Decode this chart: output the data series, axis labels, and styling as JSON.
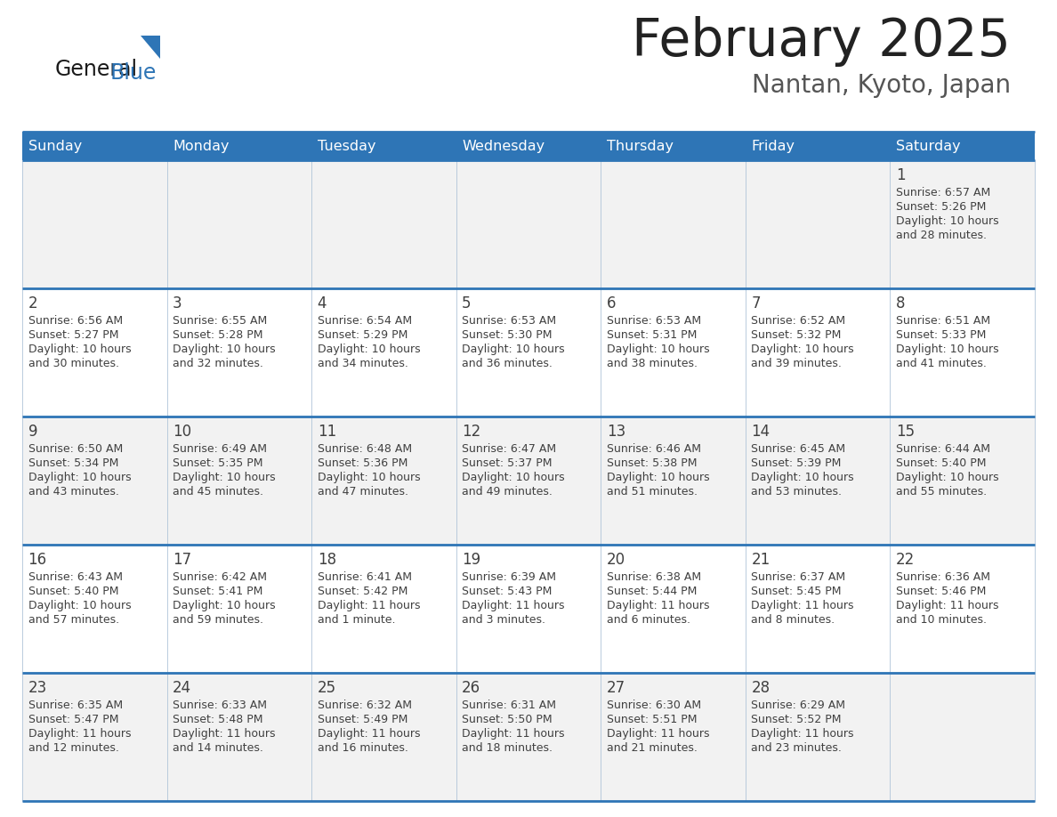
{
  "title": "February 2025",
  "subtitle": "Nantan, Kyoto, Japan",
  "header_bg": "#2E75B6",
  "header_text": "#FFFFFF",
  "cell_bg_light": "#F2F2F2",
  "cell_bg_white": "#FFFFFF",
  "cell_text": "#404040",
  "day_number_color": "#404040",
  "border_color": "#2E75B6",
  "grid_line_color": "#B0C4D8",
  "days_of_week": [
    "Sunday",
    "Monday",
    "Tuesday",
    "Wednesday",
    "Thursday",
    "Friday",
    "Saturday"
  ],
  "weeks": [
    [
      null,
      null,
      null,
      null,
      null,
      null,
      {
        "day": 1,
        "sunrise": "6:57 AM",
        "sunset": "5:26 PM",
        "daylight": "10 hours and 28 minutes."
      }
    ],
    [
      {
        "day": 2,
        "sunrise": "6:56 AM",
        "sunset": "5:27 PM",
        "daylight": "10 hours and 30 minutes."
      },
      {
        "day": 3,
        "sunrise": "6:55 AM",
        "sunset": "5:28 PM",
        "daylight": "10 hours and 32 minutes."
      },
      {
        "day": 4,
        "sunrise": "6:54 AM",
        "sunset": "5:29 PM",
        "daylight": "10 hours and 34 minutes."
      },
      {
        "day": 5,
        "sunrise": "6:53 AM",
        "sunset": "5:30 PM",
        "daylight": "10 hours and 36 minutes."
      },
      {
        "day": 6,
        "sunrise": "6:53 AM",
        "sunset": "5:31 PM",
        "daylight": "10 hours and 38 minutes."
      },
      {
        "day": 7,
        "sunrise": "6:52 AM",
        "sunset": "5:32 PM",
        "daylight": "10 hours and 39 minutes."
      },
      {
        "day": 8,
        "sunrise": "6:51 AM",
        "sunset": "5:33 PM",
        "daylight": "10 hours and 41 minutes."
      }
    ],
    [
      {
        "day": 9,
        "sunrise": "6:50 AM",
        "sunset": "5:34 PM",
        "daylight": "10 hours and 43 minutes."
      },
      {
        "day": 10,
        "sunrise": "6:49 AM",
        "sunset": "5:35 PM",
        "daylight": "10 hours and 45 minutes."
      },
      {
        "day": 11,
        "sunrise": "6:48 AM",
        "sunset": "5:36 PM",
        "daylight": "10 hours and 47 minutes."
      },
      {
        "day": 12,
        "sunrise": "6:47 AM",
        "sunset": "5:37 PM",
        "daylight": "10 hours and 49 minutes."
      },
      {
        "day": 13,
        "sunrise": "6:46 AM",
        "sunset": "5:38 PM",
        "daylight": "10 hours and 51 minutes."
      },
      {
        "day": 14,
        "sunrise": "6:45 AM",
        "sunset": "5:39 PM",
        "daylight": "10 hours and 53 minutes."
      },
      {
        "day": 15,
        "sunrise": "6:44 AM",
        "sunset": "5:40 PM",
        "daylight": "10 hours and 55 minutes."
      }
    ],
    [
      {
        "day": 16,
        "sunrise": "6:43 AM",
        "sunset": "5:40 PM",
        "daylight": "10 hours and 57 minutes."
      },
      {
        "day": 17,
        "sunrise": "6:42 AM",
        "sunset": "5:41 PM",
        "daylight": "10 hours and 59 minutes."
      },
      {
        "day": 18,
        "sunrise": "6:41 AM",
        "sunset": "5:42 PM",
        "daylight": "11 hours and 1 minute."
      },
      {
        "day": 19,
        "sunrise": "6:39 AM",
        "sunset": "5:43 PM",
        "daylight": "11 hours and 3 minutes."
      },
      {
        "day": 20,
        "sunrise": "6:38 AM",
        "sunset": "5:44 PM",
        "daylight": "11 hours and 6 minutes."
      },
      {
        "day": 21,
        "sunrise": "6:37 AM",
        "sunset": "5:45 PM",
        "daylight": "11 hours and 8 minutes."
      },
      {
        "day": 22,
        "sunrise": "6:36 AM",
        "sunset": "5:46 PM",
        "daylight": "11 hours and 10 minutes."
      }
    ],
    [
      {
        "day": 23,
        "sunrise": "6:35 AM",
        "sunset": "5:47 PM",
        "daylight": "11 hours and 12 minutes."
      },
      {
        "day": 24,
        "sunrise": "6:33 AM",
        "sunset": "5:48 PM",
        "daylight": "11 hours and 14 minutes."
      },
      {
        "day": 25,
        "sunrise": "6:32 AM",
        "sunset": "5:49 PM",
        "daylight": "11 hours and 16 minutes."
      },
      {
        "day": 26,
        "sunrise": "6:31 AM",
        "sunset": "5:50 PM",
        "daylight": "11 hours and 18 minutes."
      },
      {
        "day": 27,
        "sunrise": "6:30 AM",
        "sunset": "5:51 PM",
        "daylight": "11 hours and 21 minutes."
      },
      {
        "day": 28,
        "sunrise": "6:29 AM",
        "sunset": "5:52 PM",
        "daylight": "11 hours and 23 minutes."
      },
      null
    ]
  ]
}
